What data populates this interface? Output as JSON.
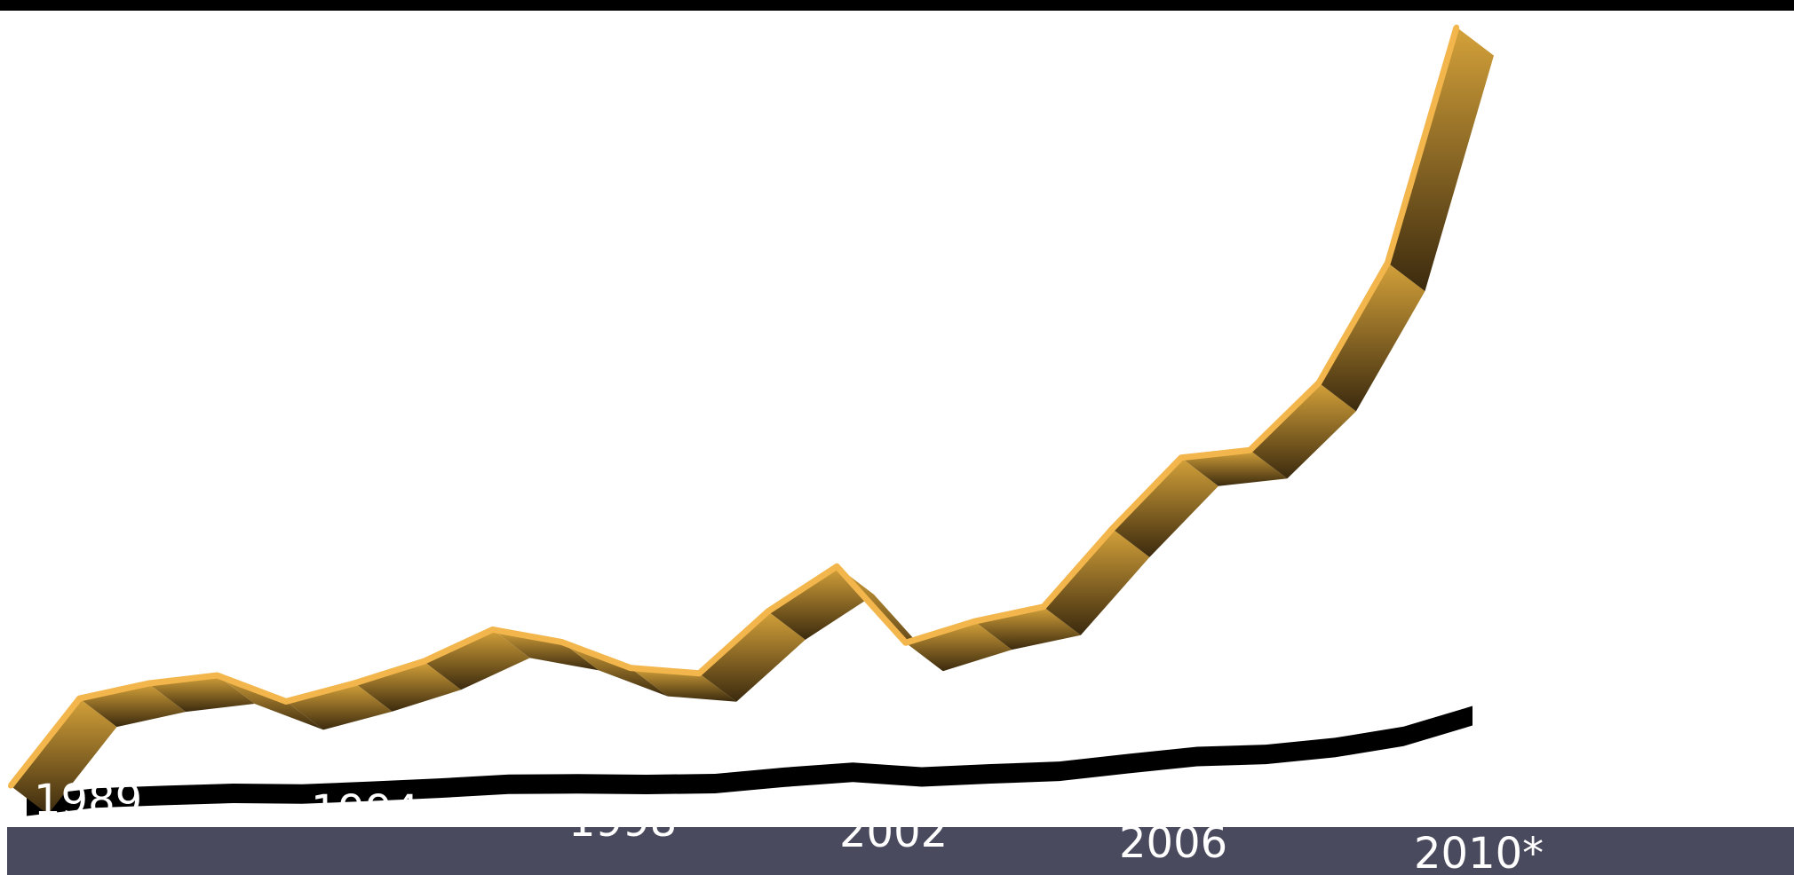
{
  "colors": {
    "ribbon_top": "#f2b64c",
    "ribbon_face_light": "#c9962e",
    "ribbon_face_dark": "#3b2a0e",
    "shadow": "#000000",
    "band": "#4a4a5e",
    "label": "#ffffff",
    "top_bar": "#000000"
  },
  "chart_data": {
    "type": "line",
    "style": "3d-ribbon",
    "x_tick_labels": [
      "1989",
      "1994",
      "1998",
      "2002",
      "2006",
      "2010*"
    ],
    "x": [
      1989,
      1990,
      1991,
      1992,
      1993,
      1994,
      1995,
      1996,
      1997,
      1998,
      1999,
      2000,
      2001,
      2002,
      2003,
      2004,
      2005,
      2006,
      2007,
      2008,
      2009,
      2010
    ],
    "series": [
      {
        "values": [
          0.5,
          3.0,
          3.4,
          3.6,
          2.8,
          3.3,
          3.9,
          4.8,
          4.4,
          3.6,
          3.4,
          5.2,
          6.5,
          4.2,
          4.8,
          5.2,
          7.5,
          9.6,
          9.8,
          11.8,
          15.4,
          22.5
        ]
      }
    ],
    "ylim": [
      0,
      23
    ],
    "grid": false,
    "legend": "none"
  }
}
